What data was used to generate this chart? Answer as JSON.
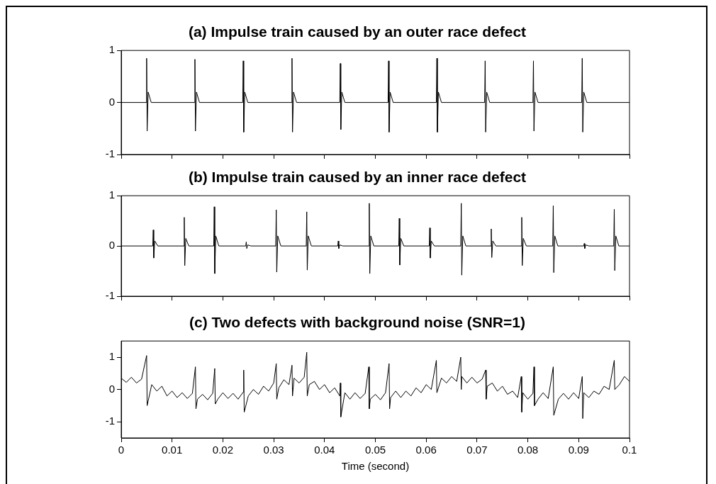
{
  "chart_data": [
    {
      "type": "line",
      "title": "(a) Impulse train caused by an outer race defect",
      "xlim": [
        0,
        0.1
      ],
      "xticks": [
        0,
        0.01,
        0.02,
        0.03,
        0.04,
        0.05,
        0.06,
        0.07,
        0.08,
        0.09,
        0.1
      ],
      "ylim": [
        -1,
        1
      ],
      "yticks": [
        -1,
        0,
        1
      ],
      "tick_labels": "y",
      "series": [
        {
          "color": "#000000",
          "x": [
            0,
            0.0049,
            0.005,
            0.0051,
            0.0053,
            0.0059,
            0.0144,
            0.0145,
            0.0146,
            0.0148,
            0.0154,
            0.0239,
            0.024,
            0.0241,
            0.0243,
            0.0249,
            0.0335,
            0.0336,
            0.0337,
            0.0339,
            0.0345,
            0.043,
            0.0431,
            0.0432,
            0.0434,
            0.044,
            0.0525,
            0.0526,
            0.0527,
            0.0529,
            0.0535,
            0.062,
            0.0621,
            0.0622,
            0.0624,
            0.063,
            0.0715,
            0.0716,
            0.0717,
            0.0719,
            0.0725,
            0.081,
            0.0811,
            0.0812,
            0.0814,
            0.082,
            0.0906,
            0.0907,
            0.0908,
            0.091,
            0.0916,
            0.1
          ],
          "values": [
            0,
            0,
            0.85,
            -0.55,
            0.2,
            0,
            0,
            0.83,
            -0.55,
            0.2,
            0,
            0,
            0.8,
            -0.57,
            0.2,
            0,
            0,
            0.85,
            -0.57,
            0.2,
            0,
            0,
            0.75,
            -0.52,
            0.2,
            0,
            0,
            0.8,
            -0.57,
            0.2,
            0,
            0,
            0.85,
            -0.57,
            0.2,
            0,
            0,
            0.8,
            -0.57,
            0.2,
            0,
            0,
            0.8,
            -0.55,
            0.2,
            0,
            0,
            0.85,
            -0.57,
            0.2,
            0,
            0
          ]
        }
      ]
    },
    {
      "type": "line",
      "title": "(b) Impulse train caused by an inner race defect",
      "xlim": [
        0,
        0.1
      ],
      "xticks": [
        0,
        0.01,
        0.02,
        0.03,
        0.04,
        0.05,
        0.06,
        0.07,
        0.08,
        0.09,
        0.1
      ],
      "ylim": [
        -1,
        1
      ],
      "yticks": [
        -1,
        0,
        1
      ],
      "tick_labels": "y",
      "series": [
        {
          "color": "#000000",
          "x": [
            0,
            0.0062,
            0.0063,
            0.0064,
            0.0066,
            0.0072,
            0.0123,
            0.0124,
            0.0125,
            0.0127,
            0.0133,
            0.0182,
            0.0183,
            0.0184,
            0.0186,
            0.0192,
            0.0245,
            0.0246,
            0.0247,
            0.0249,
            0.0255,
            0.0304,
            0.0305,
            0.0306,
            0.0308,
            0.0314,
            0.0364,
            0.0365,
            0.0366,
            0.0368,
            0.0374,
            0.0426,
            0.0427,
            0.0428,
            0.043,
            0.0436,
            0.0487,
            0.0488,
            0.0489,
            0.0491,
            0.0497,
            0.0546,
            0.0547,
            0.0548,
            0.055,
            0.0556,
            0.0606,
            0.0607,
            0.0608,
            0.061,
            0.0616,
            0.0668,
            0.0669,
            0.067,
            0.0672,
            0.0678,
            0.0727,
            0.0728,
            0.0729,
            0.0731,
            0.0737,
            0.0787,
            0.0788,
            0.0789,
            0.0791,
            0.0797,
            0.0849,
            0.085,
            0.0851,
            0.0853,
            0.0859,
            0.091,
            0.0911,
            0.0912,
            0.0914,
            0.092,
            0.0969,
            0.097,
            0.0971,
            0.0973,
            0.0979,
            0.1
          ],
          "values": [
            0,
            0,
            0.32,
            -0.24,
            0.1,
            0,
            0,
            0.57,
            -0.39,
            0.15,
            0,
            0,
            0.78,
            -0.55,
            0.2,
            0,
            0,
            0.08,
            -0.05,
            0.02,
            0,
            0,
            0.72,
            -0.52,
            0.2,
            0,
            0,
            0.68,
            -0.48,
            0.2,
            0,
            0,
            0.1,
            -0.05,
            0.02,
            0,
            0,
            0.85,
            -0.55,
            0.2,
            0,
            0,
            0.55,
            -0.38,
            0.15,
            0,
            0,
            0.36,
            -0.24,
            0.1,
            0,
            0,
            0.85,
            -0.58,
            0.2,
            0,
            0,
            0.34,
            -0.23,
            0.1,
            0,
            0,
            0.57,
            -0.39,
            0.15,
            0,
            0,
            0.8,
            -0.53,
            0.2,
            0,
            0,
            0.05,
            -0.05,
            0.02,
            0,
            0,
            0.73,
            -0.49,
            0.2,
            0,
            0
          ]
        }
      ]
    },
    {
      "type": "line",
      "title": "(c) Two defects with background noise (SNR=1)",
      "xlabel": "Time (second)",
      "xlim": [
        0,
        0.1
      ],
      "xticks": [
        0,
        0.01,
        0.02,
        0.03,
        0.04,
        0.05,
        0.06,
        0.07,
        0.08,
        0.09,
        0.1
      ],
      "ylim": [
        -1.5,
        1.5
      ],
      "yticks": [
        -1,
        0,
        1
      ],
      "series": [
        {
          "color": "#000000",
          "x": [
            0,
            0.001,
            0.002,
            0.003,
            0.004,
            0.005,
            0.0051,
            0.006,
            0.007,
            0.008,
            0.009,
            0.01,
            0.011,
            0.012,
            0.013,
            0.014,
            0.0146,
            0.0147,
            0.015,
            0.016,
            0.017,
            0.018,
            0.0184,
            0.0185,
            0.019,
            0.02,
            0.021,
            0.022,
            0.023,
            0.024,
            0.0241,
            0.0242,
            0.025,
            0.026,
            0.027,
            0.028,
            0.029,
            0.03,
            0.0305,
            0.0306,
            0.031,
            0.032,
            0.033,
            0.0336,
            0.0337,
            0.034,
            0.035,
            0.036,
            0.0365,
            0.0366,
            0.037,
            0.038,
            0.039,
            0.04,
            0.041,
            0.042,
            0.043,
            0.0431,
            0.0432,
            0.044,
            0.045,
            0.046,
            0.047,
            0.048,
            0.0487,
            0.0488,
            0.049,
            0.05,
            0.051,
            0.052,
            0.0527,
            0.0528,
            0.053,
            0.054,
            0.055,
            0.056,
            0.057,
            0.058,
            0.059,
            0.06,
            0.061,
            0.062,
            0.0621,
            0.063,
            0.064,
            0.065,
            0.066,
            0.0668,
            0.0669,
            0.067,
            0.068,
            0.069,
            0.07,
            0.071,
            0.0717,
            0.0718,
            0.072,
            0.073,
            0.074,
            0.075,
            0.076,
            0.077,
            0.078,
            0.0787,
            0.0788,
            0.079,
            0.08,
            0.081,
            0.0812,
            0.0813,
            0.082,
            0.083,
            0.084,
            0.085,
            0.0851,
            0.086,
            0.087,
            0.088,
            0.089,
            0.09,
            0.0907,
            0.0908,
            0.091,
            0.092,
            0.093,
            0.094,
            0.095,
            0.096,
            0.097,
            0.0971,
            0.098,
            0.099,
            0.1
          ],
          "values": [
            0.35,
            0.22,
            0.38,
            0.2,
            0.32,
            1.05,
            -0.5,
            0.15,
            -0.05,
            0.1,
            -0.2,
            -0.05,
            -0.25,
            -0.1,
            -0.28,
            -0.12,
            0.7,
            -0.6,
            -0.3,
            -0.15,
            -0.32,
            -0.12,
            0.65,
            -0.45,
            -0.3,
            -0.1,
            -0.28,
            -0.12,
            -0.3,
            -0.08,
            0.6,
            -0.7,
            -0.2,
            0,
            -0.15,
            0.1,
            -0.05,
            0.2,
            0.8,
            -0.3,
            0.05,
            0.3,
            0.15,
            0.75,
            -0.2,
            0.35,
            0.2,
            0.38,
            1.15,
            -0.2,
            0.15,
            0.25,
            0,
            0.15,
            -0.1,
            0.05,
            -0.2,
            0.2,
            -0.85,
            -0.1,
            -0.3,
            -0.1,
            -0.28,
            -0.12,
            0.7,
            -0.6,
            -0.3,
            -0.15,
            -0.32,
            -0.1,
            0.8,
            -0.6,
            -0.25,
            -0.05,
            -0.25,
            -0.05,
            -0.2,
            0.05,
            -0.1,
            0.15,
            0,
            0.9,
            -0.1,
            0.35,
            0.2,
            0.4,
            0.25,
            1,
            0,
            0.4,
            0.2,
            0.38,
            0.2,
            0.32,
            0.6,
            -0.3,
            0.1,
            0.2,
            -0.05,
            0.1,
            -0.15,
            -0.05,
            -0.25,
            0.4,
            -0.7,
            -0.1,
            -0.3,
            -0.12,
            0.7,
            -0.5,
            -0.3,
            -0.1,
            -0.28,
            0.7,
            -0.8,
            -0.3,
            -0.12,
            -0.3,
            -0.1,
            -0.28,
            0.4,
            -0.9,
            -0.1,
            -0.25,
            -0.05,
            -0.15,
            0.1,
            0,
            0.9,
            0,
            0.15,
            0.4,
            0.25
          ]
        }
      ]
    }
  ]
}
